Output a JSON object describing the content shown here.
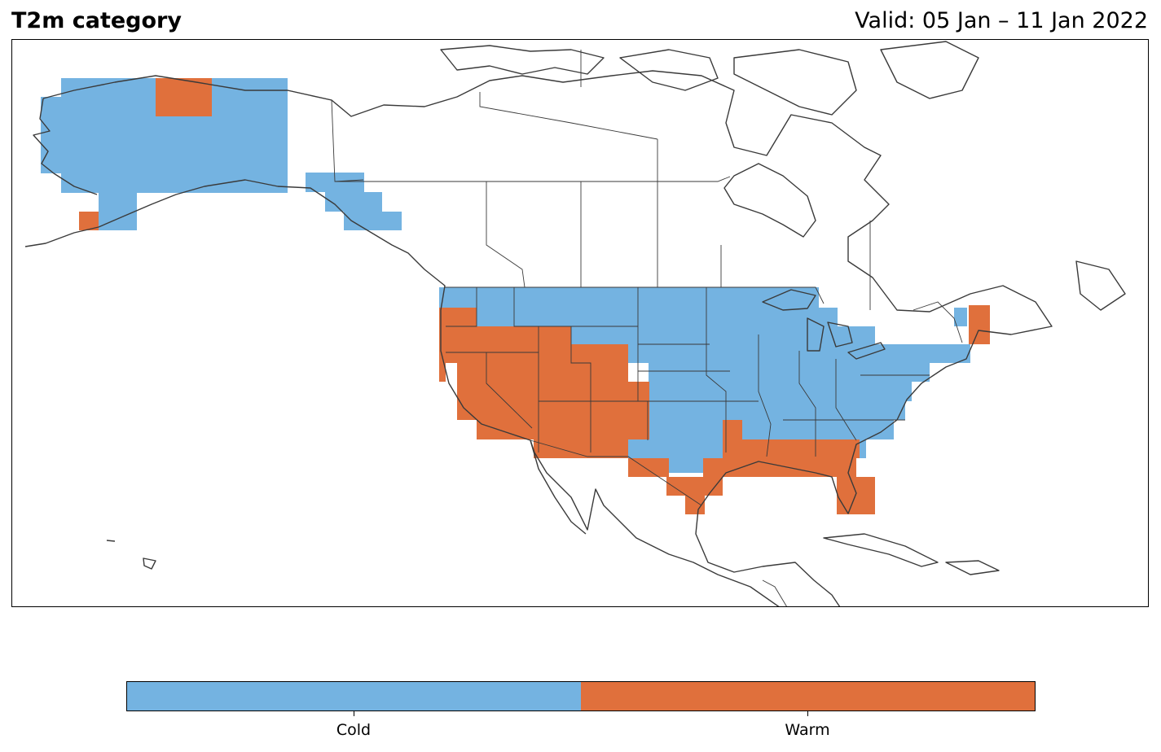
{
  "title": "T2m category",
  "valid_label": "Valid: 05 Jan – 11 Jan 2022",
  "legend": {
    "categories": [
      {
        "label": "Cold",
        "color": "#74b3e1"
      },
      {
        "label": "Warm",
        "color": "#e0703c"
      }
    ]
  },
  "map": {
    "region": "North America",
    "projection": "equirectangular (lon/lat)",
    "border_color": "#3a3a3a"
  }
}
